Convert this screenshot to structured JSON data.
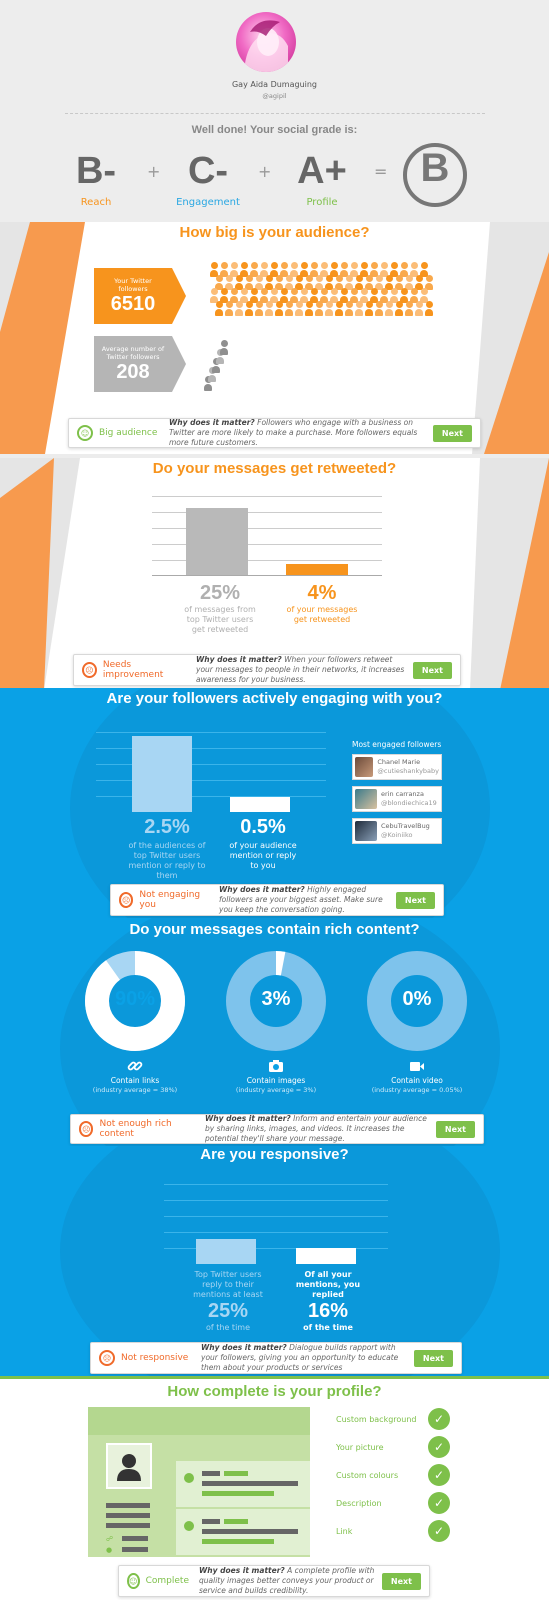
{
  "profile": {
    "name": "Gay Aida Dumaguing",
    "handle": "@agipil"
  },
  "grade": {
    "intro": "Well done! Your social grade is:",
    "items": [
      {
        "letter": "B-",
        "label": "Reach",
        "color": "#f7941d"
      },
      {
        "letter": "C-",
        "label": "Engagement",
        "color": "#2aa7e2"
      },
      {
        "letter": "A+",
        "label": "Profile",
        "color": "#7ec04a"
      }
    ],
    "plus": "+",
    "equals": "=",
    "overall": "B"
  },
  "audience": {
    "title": "How big is your audience?",
    "your_label": "Your Twitter followers",
    "your_value": "6510",
    "avg_label": "Average number of Twitter followers",
    "avg_value": "208",
    "status": "Big audience",
    "why_lead": "Why does it matter?",
    "why_text": "Followers who engage with a business on Twitter are more likely to make a purchase. More followers equals more future customers.",
    "next": "Next"
  },
  "retweets": {
    "title": "Do your messages get retweeted?",
    "top_value": "25%",
    "top_label": "of messages from top Twitter users get retweeted",
    "you_value": "4%",
    "you_label": "of your messages get retweeted",
    "status": "Needs improvement",
    "why_lead": "Why does it matter?",
    "why_text": "When your followers retweet your messages to people in their networks, it increases awareness for your business.",
    "next": "Next"
  },
  "engagement": {
    "title": "Are your followers actively engaging with you?",
    "top_value": "2.5%",
    "top_label": "of the audiences of top Twitter users mention or reply to them",
    "you_value": "0.5%",
    "you_label": "of your audience mention or reply to you",
    "most_engaged_title": "Most engaged followers",
    "followers": [
      {
        "name": "Chanel Marie",
        "handle": "@cutieshankybaby"
      },
      {
        "name": "erin carranza",
        "handle": "@blondiechica19"
      },
      {
        "name": "CebuTravelBug",
        "handle": "@Koiniiko"
      }
    ],
    "status": "Not engaging you",
    "why_lead": "Why does it matter?",
    "why_text": "Highly engaged followers are your biggest asset. Make sure you keep the conversation going.",
    "next": "Next"
  },
  "rich": {
    "title": "Do your messages contain rich content?",
    "items": [
      {
        "value": "90%",
        "label": "Contain links",
        "avg": "(industry average = 38%)"
      },
      {
        "value": "3%",
        "label": "Contain images",
        "avg": "(industry average = 3%)"
      },
      {
        "value": "0%",
        "label": "Contain video",
        "avg": "(industry average = 0.05%)"
      }
    ],
    "status": "Not enough rich content",
    "why_lead": "Why does it matter?",
    "why_text": "Inform and entertain your audience by sharing links, images, and videos. It increases the potential they'll share your message.",
    "next": "Next"
  },
  "responsive": {
    "title": "Are you responsive?",
    "top_label": "Top Twitter users reply to their mentions at least",
    "top_value": "25%",
    "top_suffix": "of the time",
    "you_label": "Of all your mentions, you replied",
    "you_value": "16%",
    "you_suffix": "of the time",
    "status": "Not responsive",
    "why_lead": "Why does it matter?",
    "why_text": "Dialogue builds rapport with your followers, giving you an opportunity to educate them about your products or services",
    "next": "Next"
  },
  "profile_complete": {
    "title": "How complete is your profile?",
    "items": [
      "Custom background",
      "Your picture",
      "Custom colours",
      "Description",
      "Link"
    ],
    "status": "Complete",
    "why_lead": "Why does it matter?",
    "why_text": "A complete profile with quality images better conveys your product or service and builds credibility.",
    "next": "Next"
  },
  "chart_data": [
    {
      "type": "bar",
      "title": "Do your messages get retweeted?",
      "categories": [
        "top Twitter users",
        "your messages"
      ],
      "values": [
        25,
        4
      ],
      "ylim": [
        0,
        30
      ]
    },
    {
      "type": "bar",
      "title": "Are your followers actively engaging with you?",
      "categories": [
        "top Twitter users",
        "your audience"
      ],
      "values": [
        2.5,
        0.5
      ],
      "ylim": [
        0,
        2.5
      ]
    },
    {
      "type": "pie",
      "title": "Do your messages contain rich content?",
      "categories": [
        "Contain links",
        "Contain images",
        "Contain video"
      ],
      "values": [
        90,
        3,
        0
      ]
    },
    {
      "type": "bar",
      "title": "Are you responsive?",
      "categories": [
        "Top Twitter users",
        "You"
      ],
      "values": [
        25,
        16
      ],
      "ylim": [
        0,
        80
      ]
    }
  ]
}
